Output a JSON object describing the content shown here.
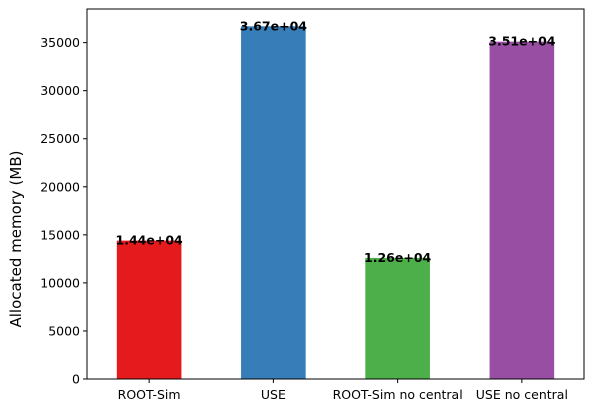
{
  "chart_data": {
    "type": "bar",
    "title": "",
    "xlabel": "",
    "ylabel": "Allocated memory (MB)",
    "ylim": [
      0,
      38500
    ],
    "yticks": [
      0,
      5000,
      10000,
      15000,
      20000,
      25000,
      30000,
      35000
    ],
    "grid": false,
    "categories": [
      "ROOT-Sim",
      "USE",
      "ROOT-Sim no central",
      "USE no central"
    ],
    "values": [
      14400,
      36700,
      12600,
      35100
    ],
    "data_labels": [
      "1.44e+04",
      "3.67e+04",
      "1.26e+04",
      "3.51e+04"
    ],
    "colors": [
      "#e41a1c",
      "#377eb8",
      "#4daf4a",
      "#984ea3"
    ]
  }
}
